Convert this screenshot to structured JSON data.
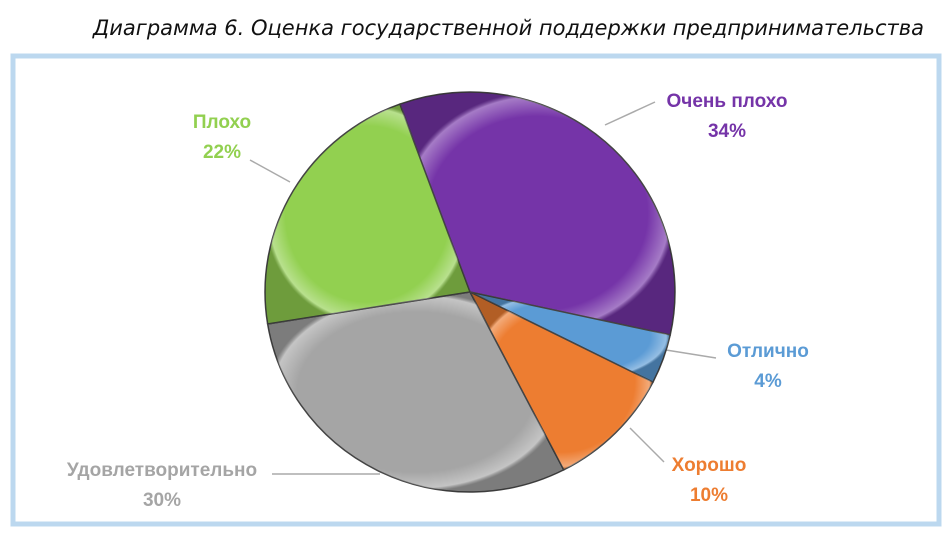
{
  "chart_data": {
    "type": "pie",
    "title": "Диаграмма 6. Оценка государственной поддержки предпринимательства",
    "categories": [
      "Очень плохо",
      "Отлично",
      "Хорошо",
      "Удовлетворительно",
      "Плохо"
    ],
    "values": [
      34,
      4,
      10,
      30,
      22
    ],
    "value_labels": [
      "34%",
      "4%",
      "10%",
      "30%",
      "22%"
    ],
    "colors": [
      "#7534a8",
      "#5b9bd5",
      "#ed7d31",
      "#a5a5a5",
      "#92d050"
    ]
  }
}
